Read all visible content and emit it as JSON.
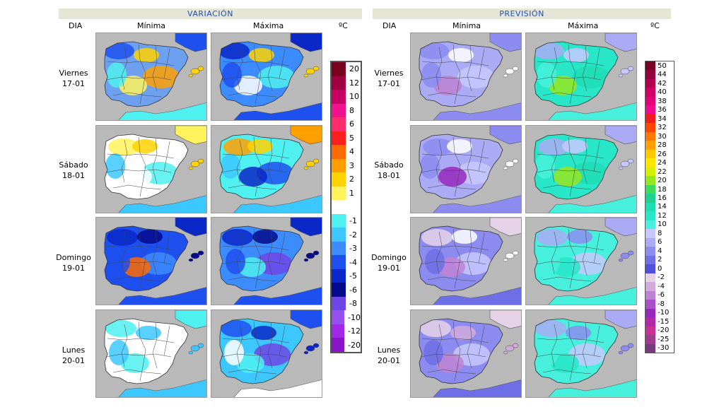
{
  "variacion": {
    "title": "VARIACIÓN",
    "col_day": "DIA",
    "col_min": "Mínima",
    "col_max": "Máxima",
    "unit": "ºC"
  },
  "prevision": {
    "title": "PREVISIÓN",
    "col_day": "DIA",
    "col_min": "Mínima",
    "col_max": "Máxima",
    "unit": "ºC"
  },
  "days": [
    {
      "name": "Viernes",
      "date": "17-01"
    },
    {
      "name": "Sábado",
      "date": "18-01"
    },
    {
      "name": "Domingo",
      "date": "19-01"
    },
    {
      "name": "Lunes",
      "date": "20-01"
    }
  ],
  "variation_legend": [
    {
      "label": "20",
      "color": "#7a0020"
    },
    {
      "label": "12",
      "color": "#a00040"
    },
    {
      "label": "10",
      "color": "#c80064"
    },
    {
      "label": "8",
      "color": "#f0148c"
    },
    {
      "label": "6",
      "color": "#ff2d6e"
    },
    {
      "label": "5",
      "color": "#ff1e1e"
    },
    {
      "label": "4",
      "color": "#ff6a00"
    },
    {
      "label": "3",
      "color": "#ffa000"
    },
    {
      "label": "2",
      "color": "#ffd200"
    },
    {
      "label": "1",
      "color": "#fff25a"
    },
    {
      "label": "",
      "color": "#ffffff"
    },
    {
      "label": "-1",
      "color": "#4ff0f0"
    },
    {
      "label": "-2",
      "color": "#3cc8ff"
    },
    {
      "label": "-3",
      "color": "#3c8cff"
    },
    {
      "label": "-4",
      "color": "#1e50f0"
    },
    {
      "label": "-5",
      "color": "#0a28c8"
    },
    {
      "label": "-6",
      "color": "#050a8c"
    },
    {
      "label": "-8",
      "color": "#6e46e6"
    },
    {
      "label": "-10",
      "color": "#9650f0"
    },
    {
      "label": "-12",
      "color": "#a028e6"
    },
    {
      "label": "-20",
      "color": "#8c14c8"
    }
  ],
  "forecast_legend": [
    {
      "label": "50",
      "color": "#7a0028"
    },
    {
      "label": "44",
      "color": "#96003c"
    },
    {
      "label": "42",
      "color": "#b40050"
    },
    {
      "label": "40",
      "color": "#d20064"
    },
    {
      "label": "38",
      "color": "#e60078"
    },
    {
      "label": "36",
      "color": "#f00a8c"
    },
    {
      "label": "34",
      "color": "#f01e1e"
    },
    {
      "label": "32",
      "color": "#ff4600"
    },
    {
      "label": "30",
      "color": "#ff7800"
    },
    {
      "label": "28",
      "color": "#ffa000"
    },
    {
      "label": "26",
      "color": "#ffc800"
    },
    {
      "label": "24",
      "color": "#ffe600"
    },
    {
      "label": "22",
      "color": "#d2f000"
    },
    {
      "label": "20",
      "color": "#96e61e"
    },
    {
      "label": "18",
      "color": "#3cdc5a"
    },
    {
      "label": "16",
      "color": "#1ed296"
    },
    {
      "label": "14",
      "color": "#1edcb4"
    },
    {
      "label": "12",
      "color": "#28e6c8"
    },
    {
      "label": "10",
      "color": "#46f0dc"
    },
    {
      "label": "8",
      "color": "#c8c8ff"
    },
    {
      "label": "6",
      "color": "#aaaaf5"
    },
    {
      "label": "4",
      "color": "#8c8cf0"
    },
    {
      "label": "2",
      "color": "#6e6ee6"
    },
    {
      "label": "0",
      "color": "#5050dc"
    },
    {
      "label": "-2",
      "color": "#e6d2e6"
    },
    {
      "label": "-4",
      "color": "#d2aadc"
    },
    {
      "label": "-6",
      "color": "#be82d2"
    },
    {
      "label": "-8",
      "color": "#aa50c8"
    },
    {
      "label": "-10",
      "color": "#9628be"
    },
    {
      "label": "-15",
      "color": "#b428aa"
    },
    {
      "label": "-20",
      "color": "#c83296"
    },
    {
      "label": "-25",
      "color": "#a03c8c"
    },
    {
      "label": "-30",
      "color": "#783c78"
    }
  ],
  "maps": {
    "variation_min": [
      {
        "base": "#6ea0f0",
        "blobs": [
          "#1e50f0",
          "#ffd200",
          "#ffa000",
          "#fff25a",
          "#4ff0f0"
        ]
      },
      {
        "base": "#ffffff",
        "blobs": [
          "#fff25a",
          "#ffd200",
          "#4ff0f0",
          "#ffffff",
          "#3cc8ff"
        ]
      },
      {
        "base": "#1e50f0",
        "blobs": [
          "#0a28c8",
          "#050a8c",
          "#3c8cff",
          "#ff6a00",
          "#1e50f0"
        ]
      },
      {
        "base": "#ffffff",
        "blobs": [
          "#4ff0f0",
          "#3cc8ff",
          "#ffffff",
          "#4ff0f0",
          "#3cc8ff"
        ]
      }
    ],
    "variation_max": [
      {
        "base": "#3c8cff",
        "blobs": [
          "#0a28c8",
          "#ffd200",
          "#4ff0f0",
          "#ffffff",
          "#1e50f0"
        ]
      },
      {
        "base": "#4ff0f0",
        "blobs": [
          "#ffa000",
          "#ffd200",
          "#1e50f0",
          "#0a28c8",
          "#3cc8ff"
        ]
      },
      {
        "base": "#3c8cff",
        "blobs": [
          "#0a28c8",
          "#050a8c",
          "#6e46e6",
          "#4ff0f0",
          "#1e50f0"
        ]
      },
      {
        "base": "#3cc8ff",
        "blobs": [
          "#1e50f0",
          "#0a28c8",
          "#6e46e6",
          "#4ff0f0",
          "#ffffff"
        ]
      }
    ],
    "forecast_min": [
      {
        "base": "#aaaaf5",
        "blobs": [
          "#8c8cf0",
          "#ffffff",
          "#c8c8ff",
          "#be82d2",
          "#8c8cf0"
        ]
      },
      {
        "base": "#aaaaf5",
        "blobs": [
          "#8c8cf0",
          "#ffffff",
          "#c8c8ff",
          "#9628be",
          "#8c8cf0"
        ]
      },
      {
        "base": "#8c8cf0",
        "blobs": [
          "#e6d2e6",
          "#ffffff",
          "#c8c8ff",
          "#be82d2",
          "#6e6ee6"
        ]
      },
      {
        "base": "#8c8cf0",
        "blobs": [
          "#e6d2e6",
          "#d2aadc",
          "#c8c8ff",
          "#be82d2",
          "#6e6ee6"
        ]
      }
    ],
    "forecast_max": [
      {
        "base": "#28e6c8",
        "blobs": [
          "#aaaaf5",
          "#c8c8ff",
          "#1edcb4",
          "#96e61e",
          "#46f0dc"
        ]
      },
      {
        "base": "#28e6c8",
        "blobs": [
          "#aaaaf5",
          "#c8c8ff",
          "#1edcb4",
          "#96e61e",
          "#46f0dc"
        ]
      },
      {
        "base": "#46f0dc",
        "blobs": [
          "#aaaaf5",
          "#8c8cf0",
          "#c8c8ff",
          "#28e6c8",
          "#46f0dc"
        ]
      },
      {
        "base": "#46f0dc",
        "blobs": [
          "#aaaaf5",
          "#8c8cf0",
          "#c8c8ff",
          "#28e6c8",
          "#46f0dc"
        ]
      }
    ]
  }
}
